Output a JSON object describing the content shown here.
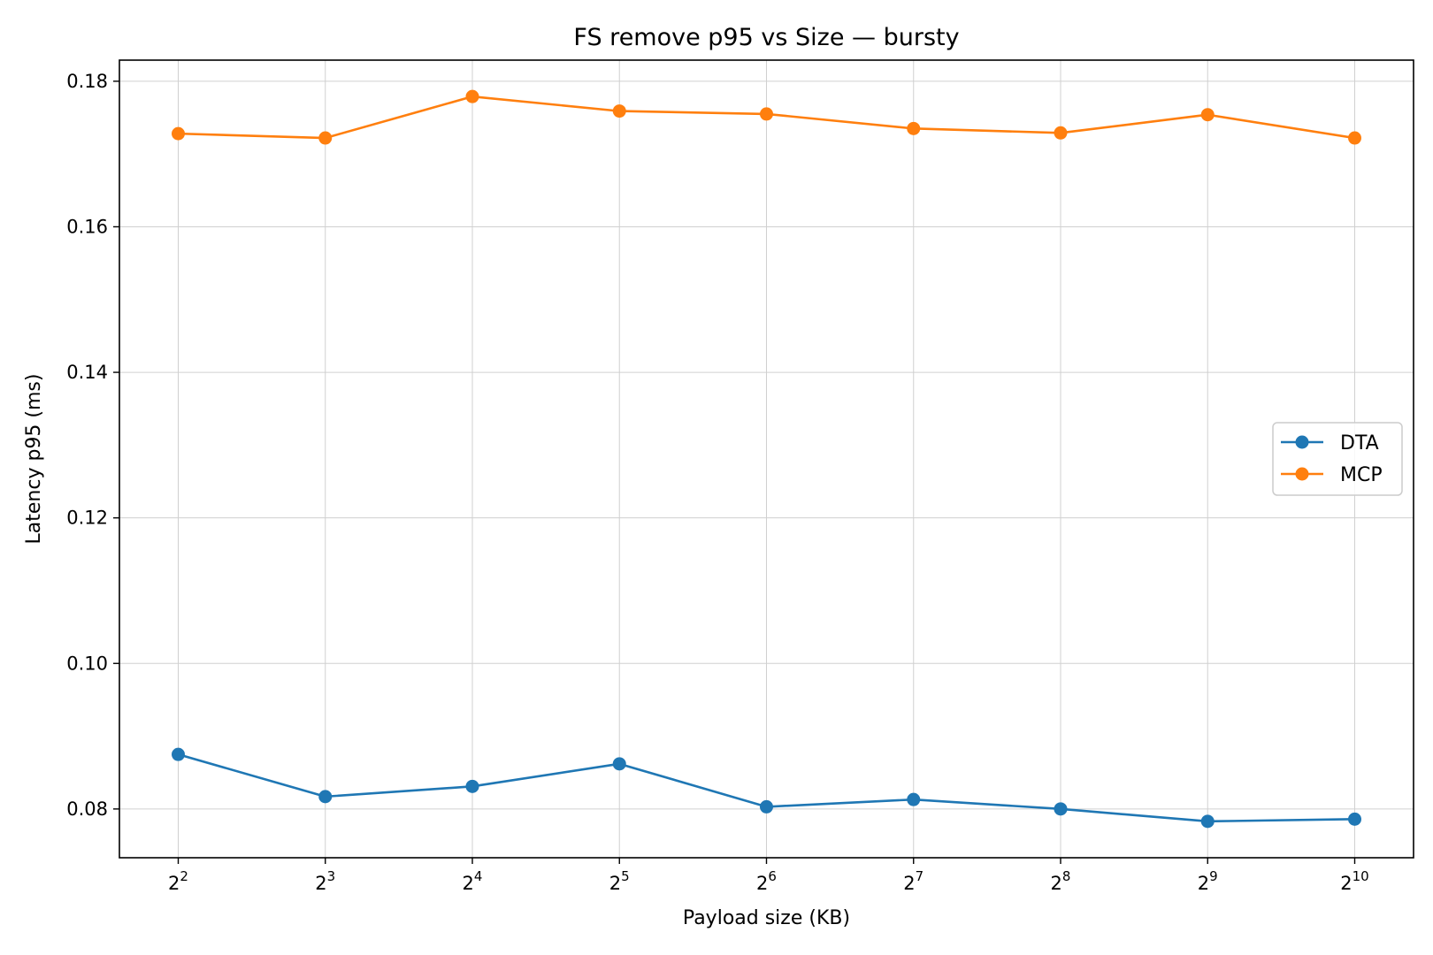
{
  "chart_data": {
    "type": "line",
    "title": "FS remove p95 vs Size — bursty",
    "xlabel": "Payload size (KB)",
    "ylabel": "Latency p95 (ms)",
    "x_scale": "log2",
    "x_ticks": [
      {
        "base": "2",
        "exp": "2"
      },
      {
        "base": "2",
        "exp": "3"
      },
      {
        "base": "2",
        "exp": "4"
      },
      {
        "base": "2",
        "exp": "5"
      },
      {
        "base": "2",
        "exp": "6"
      },
      {
        "base": "2",
        "exp": "7"
      },
      {
        "base": "2",
        "exp": "8"
      },
      {
        "base": "2",
        "exp": "9"
      },
      {
        "base": "2",
        "exp": "10"
      }
    ],
    "x": [
      4,
      8,
      16,
      32,
      64,
      128,
      256,
      512,
      1024
    ],
    "y_ticks": [
      "0.08",
      "0.10",
      "0.12",
      "0.14",
      "0.16",
      "0.18"
    ],
    "ylim": [
      0.0733,
      0.1829
    ],
    "grid": true,
    "legend_position": "center-right",
    "series": [
      {
        "name": "DTA",
        "color": "#1f77b4",
        "values": [
          0.0875,
          0.0817,
          0.0831,
          0.0862,
          0.0803,
          0.0813,
          0.08,
          0.0783,
          0.0786
        ]
      },
      {
        "name": "MCP",
        "color": "#ff7f0e",
        "values": [
          0.1728,
          0.1722,
          0.1779,
          0.1759,
          0.1755,
          0.1735,
          0.1729,
          0.1754,
          0.1722
        ]
      }
    ]
  }
}
